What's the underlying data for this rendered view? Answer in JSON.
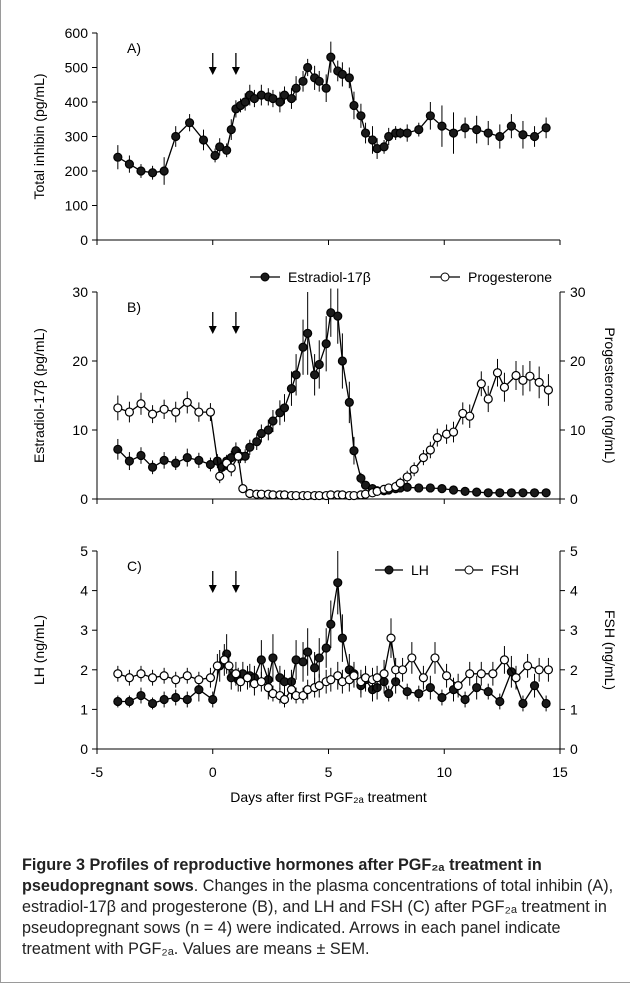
{
  "figure": {
    "x_axis": {
      "label": "Days after first PGF₂ₐ treatment",
      "lim": [
        -5,
        15
      ],
      "ticks": [
        "-5",
        "0",
        "5",
        "10",
        "15"
      ]
    },
    "caption_title": "Figure 3 Profiles of reproductive hormones after PGF₂ₐ treatment in pseudopregnant sows",
    "caption_text": ". Changes in the plasma concentrations of total inhibin (A), estradiol-17β and progesterone (B), and LH and FSH (C) after PGF₂ₐ treatment in pseudopregnant sows (n = 4) were indicated. Arrows in each panel indicate treatment with PGF₂ₐ. Values are means ± SEM."
  },
  "chart_data": [
    {
      "type": "line",
      "panel_label": "A)",
      "xlabel": "Days after first PGF₂ₐ treatment",
      "ylabel": "Total inhibin  (pg/mL)",
      "xlim": [
        -5,
        15
      ],
      "ylim": [
        0,
        600
      ],
      "yticks": [
        "0",
        "100",
        "200",
        "300",
        "400",
        "500",
        "600"
      ],
      "treatment_arrows_days": [
        0,
        1
      ],
      "series": [
        {
          "name": "",
          "marker": "filled",
          "x": [
            -4.1,
            -3.6,
            -3.1,
            -2.6,
            -2.1,
            -1.6,
            -1.0,
            -0.4,
            0.1,
            0.3,
            0.6,
            0.8,
            1.0,
            1.2,
            1.4,
            1.6,
            1.8,
            2.1,
            2.4,
            2.6,
            2.9,
            3.1,
            3.4,
            3.6,
            3.9,
            4.1,
            4.4,
            4.6,
            4.9,
            5.1,
            5.4,
            5.6,
            5.9,
            6.1,
            6.4,
            6.6,
            6.9,
            7.1,
            7.4,
            7.6,
            7.9,
            8.1,
            8.4,
            8.9,
            9.4,
            9.9,
            10.4,
            10.9,
            11.4,
            11.9,
            12.4,
            12.9,
            13.4,
            13.9,
            14.4
          ],
          "values": [
            240,
            220,
            200,
            195,
            200,
            300,
            340,
            290,
            245,
            270,
            260,
            320,
            380,
            390,
            400,
            420,
            410,
            420,
            415,
            410,
            400,
            420,
            410,
            440,
            460,
            500,
            470,
            460,
            440,
            530,
            490,
            480,
            470,
            390,
            360,
            310,
            290,
            265,
            270,
            300,
            310,
            310,
            310,
            320,
            360,
            330,
            310,
            325,
            320,
            310,
            300,
            330,
            305,
            300,
            325
          ],
          "sem": [
            35,
            25,
            20,
            20,
            40,
            30,
            25,
            30,
            20,
            25,
            20,
            30,
            25,
            20,
            25,
            30,
            25,
            30,
            25,
            25,
            30,
            25,
            30,
            35,
            30,
            25,
            35,
            30,
            40,
            45,
            30,
            35,
            30,
            40,
            35,
            30,
            40,
            30,
            20,
            25,
            20,
            15,
            25,
            20,
            40,
            60,
            60,
            30,
            40,
            35,
            35,
            35,
            40,
            30,
            30
          ]
        }
      ]
    },
    {
      "type": "line",
      "panel_label": "B)",
      "xlabel": "Days after first PGF₂ₐ treatment",
      "ylabel": "Estradiol-17β (pg/mL)",
      "ylabel_right": "Progesterone (ng/mL)",
      "xlim": [
        -5,
        15
      ],
      "ylim": [
        0,
        30
      ],
      "ylim_right": [
        0,
        30
      ],
      "yticks": [
        "0",
        "10",
        "20",
        "30"
      ],
      "yticks_right": [
        "0",
        "10",
        "20",
        "30"
      ],
      "treatment_arrows_days": [
        0,
        1
      ],
      "legend": "top",
      "series": [
        {
          "name": "Estradiol-17β",
          "marker": "filled",
          "x": [
            -4.1,
            -3.6,
            -3.1,
            -2.6,
            -2.1,
            -1.6,
            -1.1,
            -0.6,
            -0.1,
            0.2,
            0.4,
            0.6,
            0.8,
            1.0,
            1.2,
            1.4,
            1.6,
            1.9,
            2.1,
            2.4,
            2.6,
            2.9,
            3.1,
            3.4,
            3.6,
            3.9,
            4.1,
            4.4,
            4.6,
            4.9,
            5.1,
            5.4,
            5.6,
            5.9,
            6.1,
            6.4,
            6.6,
            6.9,
            7.1,
            7.4,
            7.6,
            7.9,
            8.1,
            8.4,
            8.9,
            9.4,
            9.9,
            10.4,
            10.9,
            11.4,
            11.9,
            12.4,
            12.9,
            13.4,
            13.9,
            14.4
          ],
          "values": [
            7.2,
            5.5,
            6.3,
            4.6,
            5.6,
            5.2,
            6.0,
            5.6,
            5.0,
            5.5,
            4.6,
            5.5,
            6.0,
            7.0,
            6.2,
            6.2,
            7.5,
            8.3,
            9.5,
            10.0,
            11.3,
            12.5,
            13.2,
            16.0,
            18.0,
            22.0,
            24.0,
            18.0,
            19.5,
            22.5,
            27.0,
            26.5,
            20.0,
            14.0,
            7.0,
            3.0,
            2.0,
            1.5,
            1.2,
            1.2,
            1.3,
            1.5,
            1.6,
            1.7,
            1.6,
            1.6,
            1.5,
            1.3,
            1.1,
            1.0,
            0.9,
            0.9,
            0.9,
            0.9,
            0.9,
            0.9
          ],
          "sem": [
            1.5,
            1.3,
            1.2,
            1.0,
            1.2,
            1.0,
            1.3,
            1.1,
            1.0,
            1.0,
            0.8,
            0.9,
            1.0,
            1.2,
            1.0,
            1.0,
            1.1,
            1.2,
            1.3,
            1.5,
            1.6,
            1.8,
            2.0,
            2.5,
            3.0,
            4.0,
            6.0,
            3.0,
            3.5,
            4.0,
            3.5,
            4.0,
            4.0,
            3.0,
            2.0,
            0.8,
            0.5,
            0.4,
            0.3,
            0.3,
            0.3,
            0.3,
            0.3,
            0.3,
            0.3,
            0.3,
            0.3,
            0.2,
            0.2,
            0.2,
            0.2,
            0.2,
            0.2,
            0.2,
            0.2,
            0.2
          ]
        },
        {
          "name": "Progesterone",
          "marker": "open",
          "x": [
            -4.1,
            -3.6,
            -3.1,
            -2.6,
            -2.1,
            -1.6,
            -1.1,
            -0.6,
            -0.1,
            0.3,
            0.6,
            0.8,
            1.1,
            1.3,
            1.6,
            1.9,
            2.1,
            2.4,
            2.6,
            2.9,
            3.1,
            3.4,
            3.6,
            3.9,
            4.1,
            4.4,
            4.6,
            4.9,
            5.1,
            5.4,
            5.6,
            5.9,
            6.1,
            6.4,
            6.6,
            6.9,
            7.1,
            7.4,
            7.6,
            7.9,
            8.1,
            8.4,
            8.7,
            9.1,
            9.4,
            9.7,
            10.1,
            10.4,
            10.8,
            11.1,
            11.6,
            11.9,
            12.3,
            12.6,
            13.1,
            13.4,
            13.7,
            14.1,
            14.5
          ],
          "values": [
            13.2,
            12.6,
            13.8,
            12.3,
            13.0,
            12.6,
            14.0,
            12.6,
            12.6,
            3.3,
            5.2,
            4.5,
            6.2,
            1.5,
            0.8,
            0.7,
            0.7,
            0.7,
            0.6,
            0.6,
            0.6,
            0.5,
            0.5,
            0.5,
            0.5,
            0.5,
            0.5,
            0.5,
            0.6,
            0.6,
            0.6,
            0.5,
            0.5,
            0.6,
            0.7,
            0.9,
            1.1,
            1.4,
            1.6,
            1.8,
            2.3,
            3.2,
            4.3,
            6.0,
            7.1,
            8.9,
            9.4,
            9.7,
            12.4,
            12.0,
            16.7,
            14.5,
            18.3,
            16.2,
            17.9,
            17.2,
            17.8,
            16.9,
            15.8
          ],
          "sem": [
            1.8,
            1.5,
            1.6,
            1.3,
            1.4,
            1.5,
            1.6,
            1.4,
            1.3,
            1.0,
            1.0,
            1.2,
            1.0,
            0.6,
            0.3,
            0.3,
            0.3,
            0.3,
            0.2,
            0.2,
            0.2,
            0.2,
            0.2,
            0.2,
            0.2,
            0.2,
            0.2,
            0.2,
            0.2,
            0.2,
            0.2,
            0.2,
            0.2,
            0.2,
            0.3,
            0.3,
            0.4,
            0.5,
            0.6,
            0.7,
            0.8,
            0.9,
            1.0,
            1.1,
            1.2,
            1.3,
            1.4,
            1.5,
            1.6,
            1.7,
            1.8,
            1.9,
            2.0,
            2.1,
            2.1,
            2.2,
            2.2,
            2.3,
            2.3
          ]
        }
      ]
    },
    {
      "type": "line",
      "panel_label": "C)",
      "xlabel": "Days after first PGF₂ₐ treatment",
      "ylabel": "LH (ng/mL)",
      "ylabel_right": "FSH (ng/mL)",
      "xlim": [
        -5,
        15
      ],
      "ylim": [
        0,
        5
      ],
      "ylim_right": [
        0,
        5
      ],
      "yticks": [
        "0",
        "1",
        "2",
        "3",
        "4",
        "5"
      ],
      "yticks_right": [
        "0",
        "1",
        "2",
        "3",
        "4",
        "5"
      ],
      "treatment_arrows_days": [
        0,
        1
      ],
      "legend": "top-right",
      "series": [
        {
          "name": "LH",
          "marker": "filled",
          "x": [
            -4.1,
            -3.6,
            -3.1,
            -2.6,
            -2.1,
            -1.6,
            -1.1,
            -0.6,
            0.0,
            0.3,
            0.6,
            0.8,
            1.1,
            1.3,
            1.6,
            1.8,
            2.1,
            2.4,
            2.6,
            2.9,
            3.1,
            3.4,
            3.6,
            3.9,
            4.1,
            4.4,
            4.6,
            4.9,
            5.1,
            5.4,
            5.6,
            5.9,
            6.1,
            6.4,
            6.6,
            6.9,
            7.1,
            7.4,
            7.6,
            7.9,
            8.4,
            8.9,
            9.4,
            9.9,
            10.4,
            10.9,
            11.4,
            11.9,
            12.4,
            12.9,
            13.4,
            13.9,
            14.4
          ],
          "values": [
            1.2,
            1.2,
            1.35,
            1.15,
            1.25,
            1.3,
            1.25,
            1.5,
            1.25,
            2.1,
            2.4,
            1.8,
            1.75,
            1.9,
            1.85,
            1.8,
            2.25,
            1.75,
            2.3,
            1.8,
            1.7,
            1.7,
            2.25,
            2.2,
            2.45,
            2.05,
            2.3,
            2.55,
            3.15,
            4.2,
            2.8,
            2.0,
            1.9,
            1.6,
            1.75,
            1.5,
            1.55,
            1.7,
            1.4,
            1.7,
            1.45,
            1.4,
            1.55,
            1.3,
            1.5,
            1.25,
            1.55,
            1.45,
            1.2,
            1.95,
            1.15,
            1.6,
            1.15
          ],
          "sem": [
            0.15,
            0.15,
            0.2,
            0.15,
            0.2,
            0.2,
            0.2,
            0.3,
            0.2,
            0.4,
            0.5,
            0.3,
            0.3,
            0.3,
            0.3,
            0.3,
            0.5,
            0.3,
            0.6,
            0.3,
            0.3,
            0.3,
            0.5,
            0.5,
            0.6,
            0.4,
            0.5,
            0.5,
            0.6,
            0.8,
            0.6,
            0.4,
            0.3,
            0.3,
            0.3,
            0.3,
            0.3,
            0.3,
            0.2,
            0.3,
            0.2,
            0.2,
            0.3,
            0.2,
            0.3,
            0.2,
            0.3,
            0.2,
            0.2,
            0.4,
            0.2,
            0.3,
            0.2
          ]
        },
        {
          "name": "FSH",
          "marker": "open",
          "x": [
            -4.1,
            -3.6,
            -3.1,
            -2.6,
            -2.1,
            -1.6,
            -1.1,
            -0.6,
            -0.1,
            0.2,
            0.5,
            0.7,
            1.0,
            1.2,
            1.5,
            1.8,
            2.1,
            2.4,
            2.6,
            2.9,
            3.1,
            3.4,
            3.6,
            3.9,
            4.1,
            4.4,
            4.6,
            4.9,
            5.1,
            5.4,
            5.6,
            5.9,
            6.1,
            6.4,
            6.6,
            6.9,
            7.1,
            7.4,
            7.7,
            7.9,
            8.2,
            8.6,
            9.1,
            9.6,
            10.1,
            10.6,
            11.1,
            11.6,
            12.1,
            12.6,
            13.1,
            13.6,
            14.1,
            14.5
          ],
          "values": [
            1.9,
            1.8,
            1.9,
            1.8,
            1.85,
            1.75,
            1.85,
            1.75,
            1.8,
            2.1,
            2.25,
            2.1,
            1.9,
            1.7,
            1.8,
            1.65,
            1.7,
            1.55,
            1.4,
            1.35,
            1.25,
            1.5,
            1.35,
            1.35,
            1.5,
            1.55,
            1.6,
            1.7,
            1.75,
            1.85,
            1.7,
            1.75,
            1.85,
            1.7,
            1.8,
            1.75,
            1.8,
            1.9,
            2.8,
            2.0,
            2.0,
            2.3,
            1.8,
            2.3,
            1.85,
            1.6,
            1.9,
            1.9,
            1.9,
            2.25,
            1.8,
            2.1,
            2.0,
            2.0
          ],
          "sem": [
            0.2,
            0.2,
            0.2,
            0.2,
            0.2,
            0.2,
            0.2,
            0.2,
            0.25,
            0.3,
            0.4,
            0.3,
            0.3,
            0.25,
            0.3,
            0.3,
            0.25,
            0.3,
            0.2,
            0.2,
            0.2,
            0.25,
            0.2,
            0.2,
            0.25,
            0.25,
            0.3,
            0.3,
            0.3,
            0.35,
            0.3,
            0.3,
            0.3,
            0.3,
            0.3,
            0.3,
            0.3,
            0.35,
            0.5,
            0.3,
            0.3,
            0.4,
            0.3,
            0.4,
            0.3,
            0.3,
            0.3,
            0.3,
            0.3,
            0.35,
            0.3,
            0.3,
            0.3,
            0.3
          ]
        }
      ]
    }
  ]
}
